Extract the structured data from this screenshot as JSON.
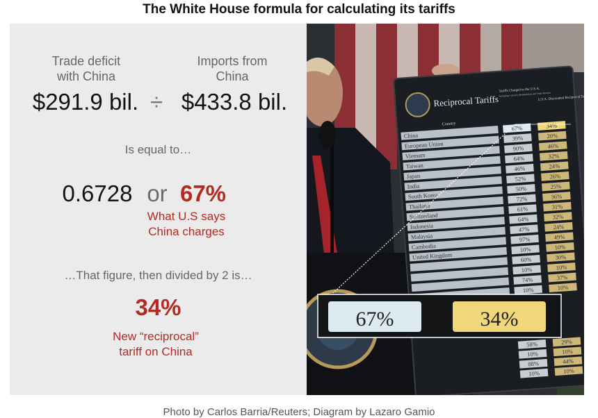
{
  "title": "The White House formula for calculating its tariffs",
  "formula": {
    "deficit_label_1": "Trade deficit",
    "deficit_label_2": "with China",
    "imports_label_1": "Imports from",
    "imports_label_2": "China",
    "deficit_value": "$291.9 bil.",
    "divide_symbol": "÷",
    "imports_value": "$433.8 bil.",
    "equals_text": "Is equal to…",
    "ratio": "0.6728",
    "or": "or",
    "percent": "67%",
    "percent_caption_1": "What U.S says",
    "percent_caption_2": "China charges",
    "divided_text": "…That figure, then divided by 2 is…",
    "result": "34%",
    "result_caption_1": "New “reciprocal”",
    "result_caption_2": "tariff on China"
  },
  "board": {
    "heading": "Reciprocal Tariffs",
    "col_country": "Country",
    "col_charged": "Tariffs Charged to the U.S.A.",
    "col_charged_sub": "Including Currency Manipulation and Trade Barriers",
    "col_discounted": "U.S.A. Discounted Reciprocal Tariffs",
    "rows": [
      {
        "country": "China",
        "charged": "67%",
        "discounted": "34%"
      },
      {
        "country": "European Union",
        "charged": "39%",
        "discounted": "20%"
      },
      {
        "country": "Vietnam",
        "charged": "90%",
        "discounted": "46%"
      },
      {
        "country": "Taiwan",
        "charged": "64%",
        "discounted": "32%"
      },
      {
        "country": "Japan",
        "charged": "46%",
        "discounted": "24%"
      },
      {
        "country": "India",
        "charged": "52%",
        "discounted": "26%"
      },
      {
        "country": "South Korea",
        "charged": "50%",
        "discounted": "25%"
      },
      {
        "country": "Thailand",
        "charged": "72%",
        "discounted": "36%"
      },
      {
        "country": "Switzerland",
        "charged": "61%",
        "discounted": "31%"
      },
      {
        "country": "Indonesia",
        "charged": "64%",
        "discounted": "32%"
      },
      {
        "country": "Malaysia",
        "charged": "47%",
        "discounted": "24%"
      },
      {
        "country": "Cambodia",
        "charged": "97%",
        "discounted": "49%"
      },
      {
        "country": "United Kingdom",
        "charged": "10%",
        "discounted": "10%"
      },
      {
        "country": "",
        "charged": "60%",
        "discounted": "30%"
      },
      {
        "country": "",
        "charged": "10%",
        "discounted": "10%"
      },
      {
        "country": "",
        "charged": "74%",
        "discounted": "37%"
      },
      {
        "country": "",
        "charged": "10%",
        "discounted": "10%"
      }
    ],
    "lower_rows": [
      {
        "charged": "58%",
        "discounted": "29%"
      },
      {
        "charged": "10%",
        "discounted": "10%"
      },
      {
        "charged": "88%",
        "discounted": "44%"
      },
      {
        "charged": "10%",
        "discounted": "10%"
      }
    ],
    "zoom_charged": "67%",
    "zoom_discounted": "34%"
  },
  "credit": "Photo by Carlos Barria/Reuters; Diagram by Lazaro Gamio",
  "colors": {
    "accent_red": "#b32b23",
    "panel_bg": "#ebebeb",
    "board_bg": "#1a1d22",
    "yellow_cell": "#f0d77a",
    "blue_cell": "#dceaf2"
  }
}
